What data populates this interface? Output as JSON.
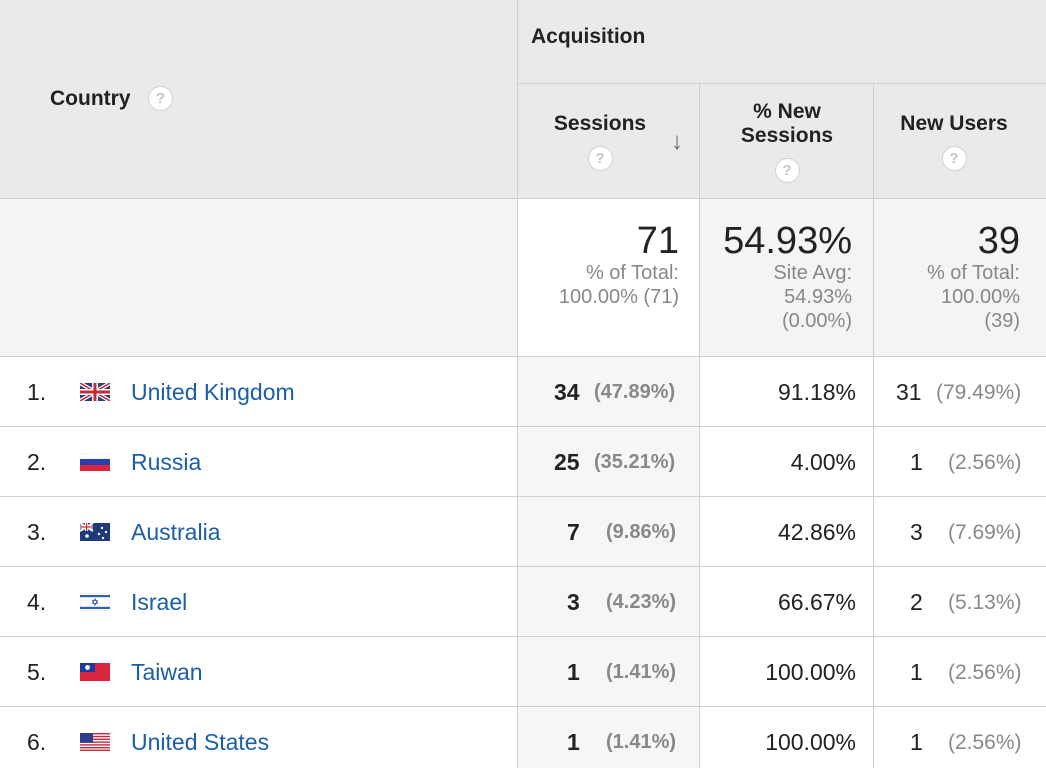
{
  "header": {
    "acquisition": "Acquisition",
    "country": "Country",
    "sessions": "Sessions",
    "new_sessions_line1": "% New",
    "new_sessions_line2": "Sessions",
    "new_users": "New Users",
    "help_mark": "?"
  },
  "summary": {
    "sessions": {
      "value": "71",
      "line1": "% of Total:",
      "line2": "100.00% (71)"
    },
    "new_sessions": {
      "value": "54.93%",
      "line1": "Site Avg:",
      "line2": "54.93%",
      "line3": "(0.00%)"
    },
    "new_users": {
      "value": "39",
      "line1": "% of Total:",
      "line2": "100.00%",
      "line3": "(39)"
    }
  },
  "rows": [
    {
      "rank": "1.",
      "country": "United Kingdom",
      "flag": "uk-flag",
      "sessions": "34",
      "sessions_pct": "(47.89%)",
      "new_sessions": "91.18%",
      "new_users": "31",
      "new_users_pct": "(79.49%)"
    },
    {
      "rank": "2.",
      "country": "Russia",
      "flag": "russia-flag",
      "sessions": "25",
      "sessions_pct": "(35.21%)",
      "new_sessions": "4.00%",
      "new_users": "1",
      "new_users_pct": "(2.56%)"
    },
    {
      "rank": "3.",
      "country": "Australia",
      "flag": "australia-flag",
      "sessions": "7",
      "sessions_pct": "(9.86%)",
      "new_sessions": "42.86%",
      "new_users": "3",
      "new_users_pct": "(7.69%)"
    },
    {
      "rank": "4.",
      "country": "Israel",
      "flag": "israel-flag",
      "sessions": "3",
      "sessions_pct": "(4.23%)",
      "new_sessions": "66.67%",
      "new_users": "2",
      "new_users_pct": "(5.13%)"
    },
    {
      "rank": "5.",
      "country": "Taiwan",
      "flag": "taiwan-flag",
      "sessions": "1",
      "sessions_pct": "(1.41%)",
      "new_sessions": "100.00%",
      "new_users": "1",
      "new_users_pct": "(2.56%)"
    },
    {
      "rank": "6.",
      "country": "United States",
      "flag": "us-flag",
      "sessions": "1",
      "sessions_pct": "(1.41%)",
      "new_sessions": "100.00%",
      "new_users": "1",
      "new_users_pct": "(2.56%)"
    }
  ],
  "colors": {
    "link": "#1a5ea8",
    "header_bg": "#eaeaea",
    "muted": "#888888"
  }
}
